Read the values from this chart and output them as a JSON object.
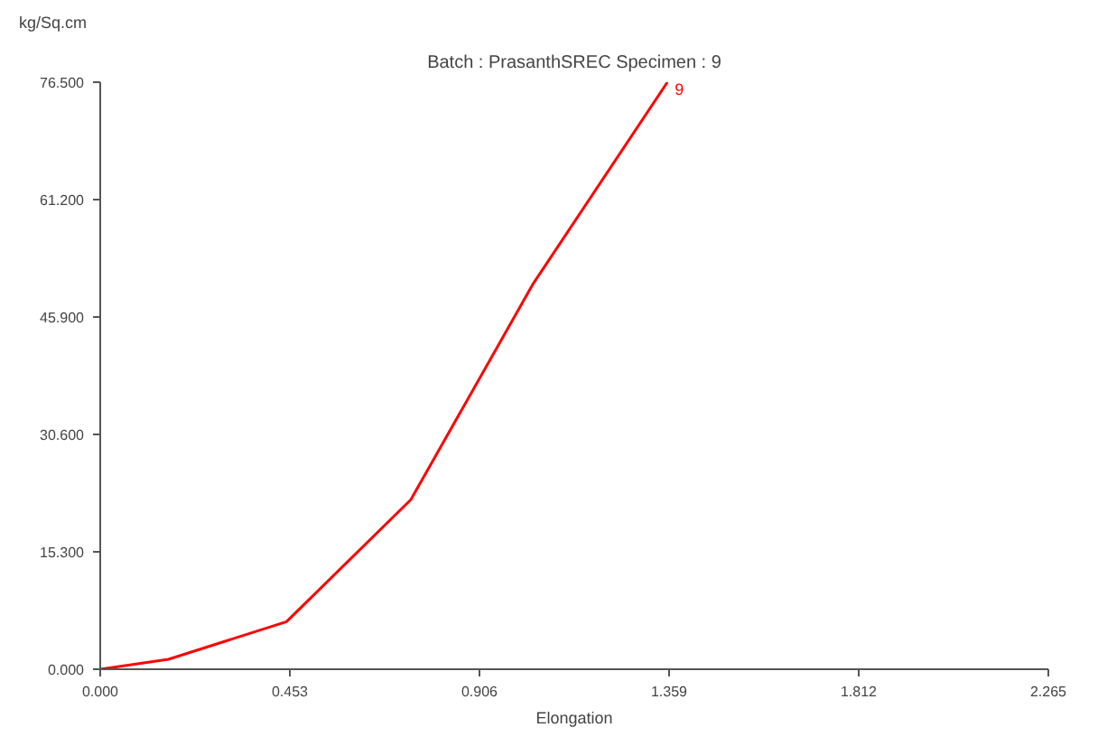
{
  "chart_data": {
    "type": "line",
    "title": "Batch : PrasanthSREC Specimen : 9",
    "xlabel": "Elongation",
    "ylabel": "kg/Sq.cm",
    "x": [
      0,
      0.163,
      0.445,
      0.742,
      1.035,
      1.355
    ],
    "series": [
      {
        "color": "#ff0000",
        "values": [
          0,
          1.3,
          6.2,
          22.1,
          50.3,
          76.5
        ]
      }
    ],
    "annotations": [
      {
        "text": "9",
        "x": 1.355,
        "y": 76.5
      }
    ],
    "xlim": [
      0,
      2.265
    ],
    "ylim": [
      0,
      76.5
    ],
    "xticks": [
      {
        "value": 0,
        "label": "0.000"
      },
      {
        "value": 0.453,
        "label": "0.453"
      },
      {
        "value": 0.906,
        "label": "0.906"
      },
      {
        "value": 1.359,
        "label": "1.359"
      },
      {
        "value": 1.812,
        "label": "1.812"
      },
      {
        "value": 2.265,
        "label": "2.265"
      }
    ],
    "yticks": [
      {
        "value": 0,
        "label": "0.000"
      },
      {
        "value": 15.3,
        "label": "15.300"
      },
      {
        "value": 30.6,
        "label": "30.600"
      },
      {
        "value": 45.9,
        "label": "45.900"
      },
      {
        "value": 61.2,
        "label": "61.200"
      },
      {
        "value": 76.5,
        "label": "76.500"
      }
    ],
    "grid": false,
    "marker": "none",
    "line_style": "solid"
  }
}
